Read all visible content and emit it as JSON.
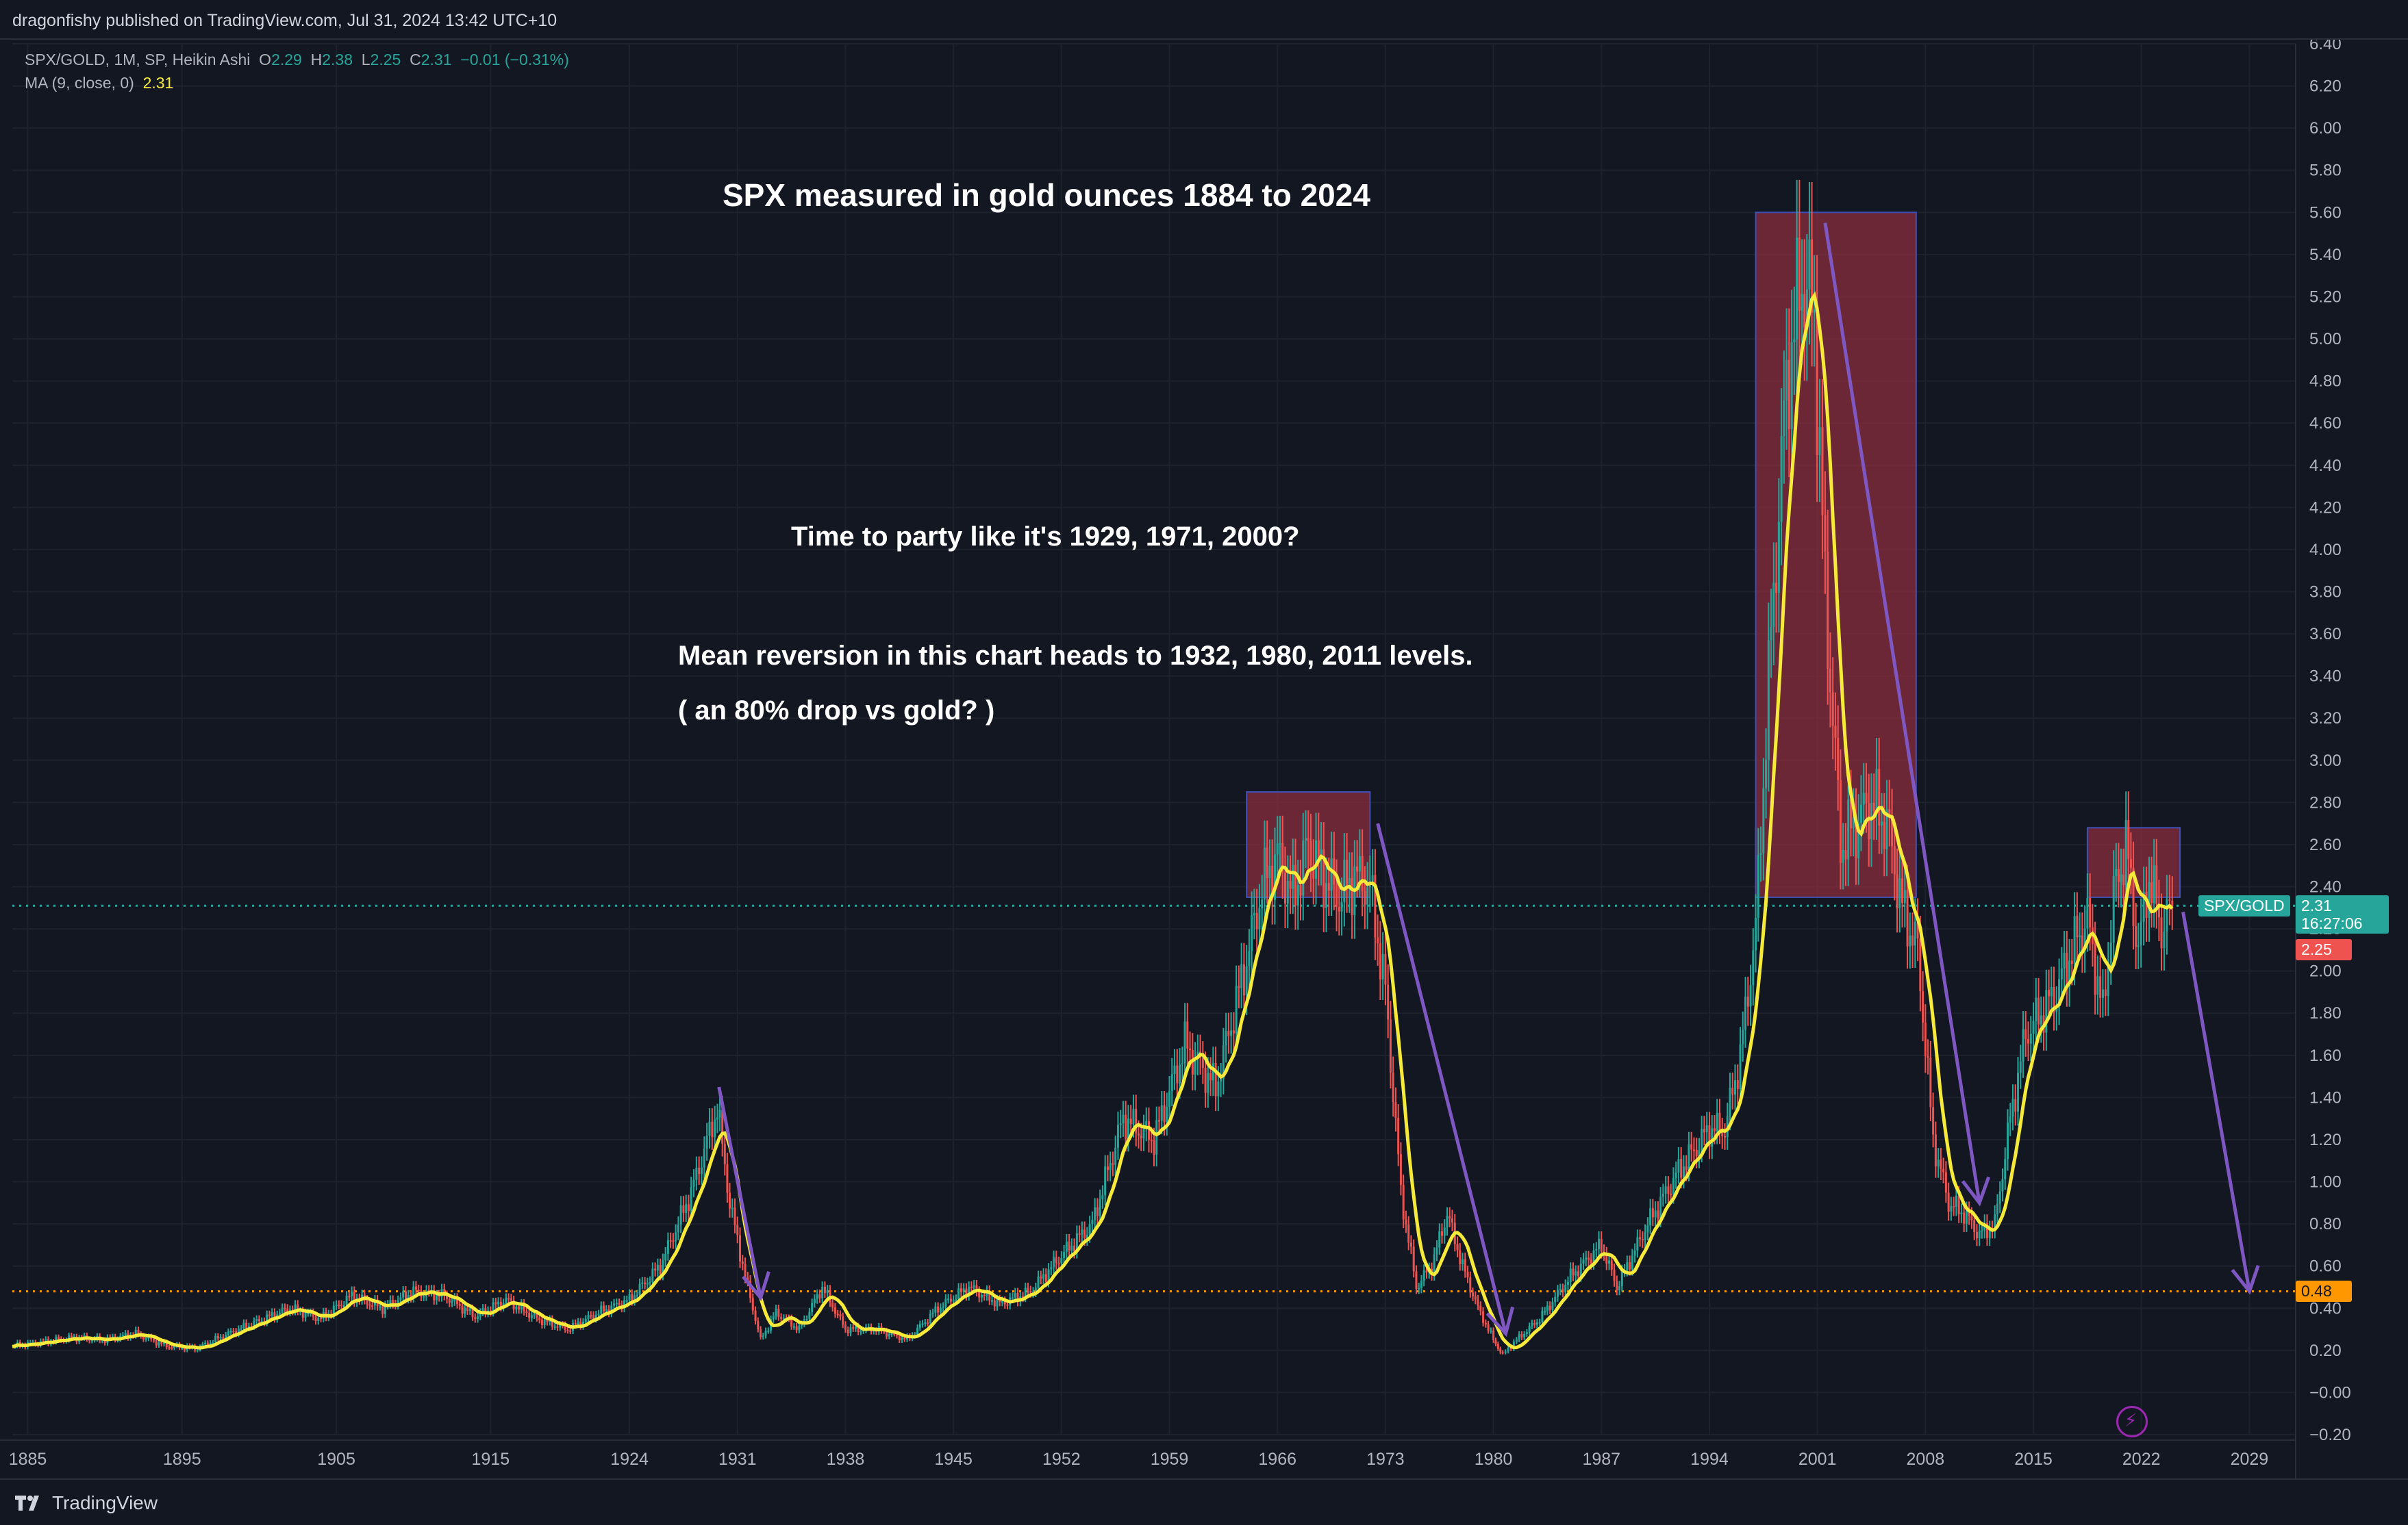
{
  "header": {
    "published": "dragonfishy published on TradingView.com, Jul 31, 2024 13:42 UTC+10"
  },
  "legend": {
    "symbol": "SPX/GOLD, 1M, SP, Heikin Ashi",
    "o_label": "O",
    "o_value": "2.29",
    "h_label": "H",
    "h_value": "2.38",
    "l_label": "L",
    "l_value": "2.25",
    "c_label": "C",
    "c_value": "2.31",
    "change": "−0.01 (−0.31%)",
    "ma_label": "MA (9, close, 0)",
    "ma_value": "2.31"
  },
  "annotations": {
    "title": "SPX measured in gold ounces 1884 to 2024",
    "line1": "Time to party like it's 1929, 1971, 2000?",
    "line2": "Mean reversion in this chart heads to 1932, 1980, 2011 levels.",
    "line3": "( an 80% drop vs gold? )"
  },
  "price_tags": {
    "symbol_tag": "SPX/GOLD",
    "last": "2.31",
    "countdown": "16:27:06",
    "low": "2.25",
    "level": "0.48"
  },
  "footer": {
    "brand": "TradingView"
  },
  "colors": {
    "background": "#131722",
    "up": "#26a69a",
    "down": "#ef5350",
    "ma": "#f5e93a",
    "box": "#8b2e3f",
    "arrow": "#7e57c2",
    "level_line": "#ff9800"
  },
  "chart_data": {
    "type": "line",
    "y_scale": "linear",
    "ylim": [
      -0.2,
      6.4
    ],
    "xlim": [
      1884,
      2032
    ],
    "x_ticks": [
      "1885",
      "1895",
      "1905",
      "1915",
      "1924",
      "1931",
      "1938",
      "1945",
      "1952",
      "1959",
      "1966",
      "1973",
      "1980",
      "1987",
      "1994",
      "2001",
      "2008",
      "2015",
      "2022",
      "2029"
    ],
    "x_tick_years": [
      1885,
      1895,
      1905,
      1915,
      1924,
      1931,
      1938,
      1945,
      1952,
      1959,
      1966,
      1973,
      1980,
      1987,
      1994,
      2001,
      2008,
      2015,
      2022,
      2029
    ],
    "y_ticks": [
      "6.40",
      "6.20",
      "6.00",
      "5.80",
      "5.60",
      "5.40",
      "5.20",
      "5.00",
      "4.80",
      "4.60",
      "4.40",
      "4.20",
      "4.00",
      "3.80",
      "3.60",
      "3.40",
      "3.20",
      "3.00",
      "2.80",
      "2.60",
      "2.40",
      "2.20",
      "2.00",
      "1.80",
      "1.60",
      "1.40",
      "1.20",
      "1.00",
      "0.80",
      "0.60",
      "0.40",
      "0.20",
      "−0.00",
      "−0.20"
    ],
    "y_tick_values": [
      6.4,
      6.2,
      6.0,
      5.8,
      5.6,
      5.4,
      5.2,
      5.0,
      4.8,
      4.6,
      4.4,
      4.2,
      4.0,
      3.8,
      3.6,
      3.4,
      3.2,
      3.0,
      2.8,
      2.6,
      2.4,
      2.2,
      2.0,
      1.8,
      1.6,
      1.4,
      1.2,
      1.0,
      0.8,
      0.6,
      0.4,
      0.2,
      0.0,
      -0.2
    ],
    "series": [
      {
        "x": [
          1884,
          1886,
          1888,
          1890,
          1892,
          1894,
          1896,
          1898,
          1900,
          1902,
          1904,
          1906,
          1908,
          1910,
          1912,
          1914,
          1916,
          1918,
          1920,
          1922,
          1924,
          1926,
          1928,
          1929.7,
          1930.5,
          1931.5,
          1932.5,
          1933.5,
          1935,
          1936.5,
          1938,
          1940,
          1942,
          1944,
          1946,
          1948,
          1950,
          1952,
          1954,
          1956,
          1958,
          1960,
          1962,
          1963,
          1964,
          1965,
          1966,
          1967,
          1968,
          1969,
          1970,
          1971,
          1972,
          1973,
          1974,
          1975,
          1976,
          1977,
          1978,
          1979,
          1980,
          1980.6,
          1981.5,
          1983,
          1985,
          1987,
          1988,
          1990,
          1992,
          1994,
          1995,
          1996,
          1997,
          1998,
          1999,
          2000,
          2000.8,
          2001.5,
          2002.5,
          2003.5,
          2004.5,
          2005.5,
          2006.5,
          2007.5,
          2008.5,
          2009.5,
          2010.5,
          2011.5,
          2012.5,
          2013.5,
          2014.5,
          2015.5,
          2016.5,
          2017.5,
          2018.5,
          2019.5,
          2020.2,
          2021,
          2021.8,
          2022.5,
          2023.3,
          2024
        ],
        "values": [
          0.22,
          0.24,
          0.26,
          0.25,
          0.28,
          0.22,
          0.21,
          0.28,
          0.34,
          0.4,
          0.35,
          0.46,
          0.4,
          0.48,
          0.46,
          0.36,
          0.44,
          0.35,
          0.3,
          0.38,
          0.44,
          0.6,
          0.95,
          1.35,
          0.9,
          0.55,
          0.25,
          0.38,
          0.3,
          0.5,
          0.3,
          0.3,
          0.25,
          0.4,
          0.5,
          0.42,
          0.48,
          0.65,
          0.8,
          1.3,
          1.2,
          1.65,
          1.45,
          1.75,
          2.05,
          2.4,
          2.55,
          2.35,
          2.6,
          2.45,
          2.35,
          2.45,
          2.4,
          1.9,
          0.95,
          0.5,
          0.6,
          0.85,
          0.6,
          0.4,
          0.25,
          0.18,
          0.25,
          0.35,
          0.55,
          0.7,
          0.5,
          0.8,
          1.05,
          1.25,
          1.25,
          1.6,
          2.2,
          3.6,
          4.8,
          5.3,
          5.1,
          3.8,
          2.6,
          2.7,
          2.8,
          2.7,
          2.3,
          2.1,
          1.2,
          0.9,
          0.85,
          0.75,
          0.8,
          1.3,
          1.7,
          1.8,
          1.9,
          2.1,
          2.25,
          1.8,
          2.35,
          2.6,
          2.1,
          2.45,
          2.2,
          2.31
        ]
      }
    ],
    "boxes": [
      {
        "x0": 1964,
        "x1": 1972,
        "y0": 2.35,
        "y1": 2.85
      },
      {
        "x0": 1997,
        "x1": 2007.4,
        "y0": 2.35,
        "y1": 5.6
      },
      {
        "x0": 2018.5,
        "x1": 2024.5,
        "y0": 2.35,
        "y1": 2.68
      }
    ],
    "arrows": [
      {
        "x0": 1929.8,
        "y0": 1.45,
        "x1": 1932.5,
        "y1": 0.45
      },
      {
        "x0": 1972.5,
        "y0": 2.7,
        "x1": 1980.8,
        "y1": 0.28
      },
      {
        "x0": 2001.5,
        "y0": 5.55,
        "x1": 2011.5,
        "y1": 0.9
      },
      {
        "x0": 2024.7,
        "y0": 2.28,
        "x1": 2029,
        "y1": 0.48
      }
    ],
    "hlines": [
      {
        "y": 0.48,
        "style": "dotted",
        "color": "#ff9800"
      },
      {
        "y": 2.31,
        "style": "dotted",
        "color": "#26a69a"
      }
    ]
  }
}
